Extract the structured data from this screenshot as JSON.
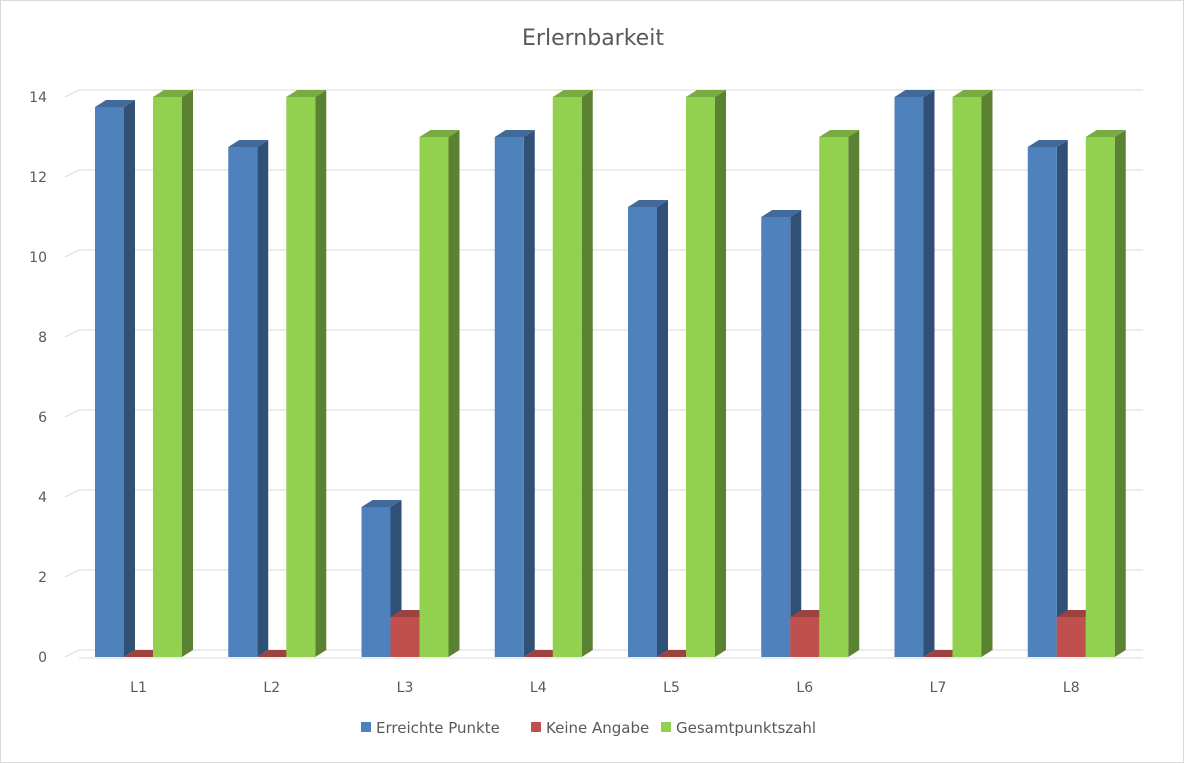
{
  "chart_data": {
    "type": "bar",
    "title": "Erlernbarkeit",
    "xlabel": "",
    "ylabel": "",
    "categories": [
      "L1",
      "L2",
      "L3",
      "L4",
      "L5",
      "L6",
      "L7",
      "L8"
    ],
    "series": [
      {
        "name": "Erreichte Punkte",
        "values": [
          13.75,
          12.75,
          3.75,
          13,
          11.25,
          11,
          14,
          12.75
        ],
        "color": "#4f81bd"
      },
      {
        "name": "Keine Angabe",
        "values": [
          0,
          0,
          1,
          0,
          0,
          1,
          0,
          1
        ],
        "color": "#c0504d"
      },
      {
        "name": "Gesamtpunktszahl",
        "values": [
          14,
          14,
          13,
          14,
          14,
          13,
          14,
          13
        ],
        "color": "#92d050"
      }
    ],
    "ylim": [
      0,
      14
    ],
    "yticks": [
      "0",
      "2",
      "4",
      "6",
      "8",
      "10",
      "12",
      "14"
    ],
    "grid": true,
    "legend_position": "bottom"
  }
}
